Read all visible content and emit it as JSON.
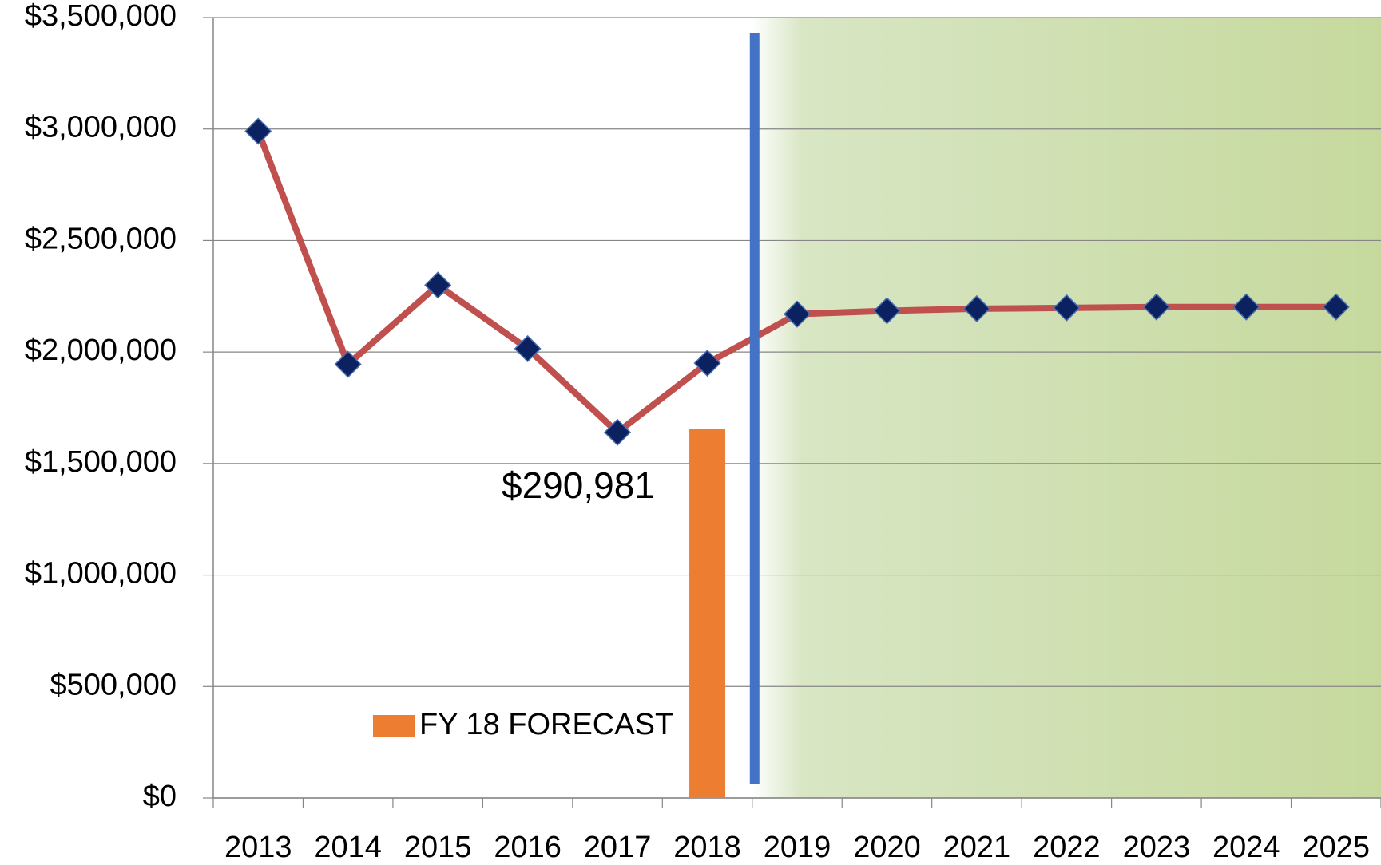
{
  "chart_data": {
    "type": "combo",
    "categories": [
      "2013",
      "2014",
      "2015",
      "2016",
      "2017",
      "2018",
      "2019",
      "2020",
      "2021",
      "2022",
      "2023",
      "2024",
      "2025"
    ],
    "series": [
      {
        "type": "bar",
        "name": "FY 18 FORECAST",
        "color": "#ed7d31",
        "values": [
          null,
          null,
          null,
          null,
          null,
          1655000,
          null,
          null,
          null,
          null,
          null,
          null,
          null
        ]
      },
      {
        "type": "line",
        "color": "#c0504d",
        "marker_color": "#0b2160",
        "values": [
          2990000,
          1945000,
          2300000,
          2015000,
          1640000,
          1950000,
          2170000,
          2185000,
          2194000,
          2198000,
          2202000,
          2202000,
          2202000
        ]
      }
    ],
    "annotations": [
      {
        "text": "$290,981"
      }
    ],
    "ylim": [
      0,
      3500000
    ],
    "yticks": [
      {
        "value": 0,
        "label": "$0"
      },
      {
        "value": 500000,
        "label": "$500,000"
      },
      {
        "value": 1000000,
        "label": "$1,000,000"
      },
      {
        "value": 1500000,
        "label": "$1,500,000"
      },
      {
        "value": 2000000,
        "label": "$2,000,000"
      },
      {
        "value": 2500000,
        "label": "$2,500,000"
      },
      {
        "value": 3000000,
        "label": "$3,000,000"
      },
      {
        "value": 3500000,
        "label": "$3,500,000"
      }
    ],
    "grid": true,
    "legend": "inside-bottom"
  }
}
